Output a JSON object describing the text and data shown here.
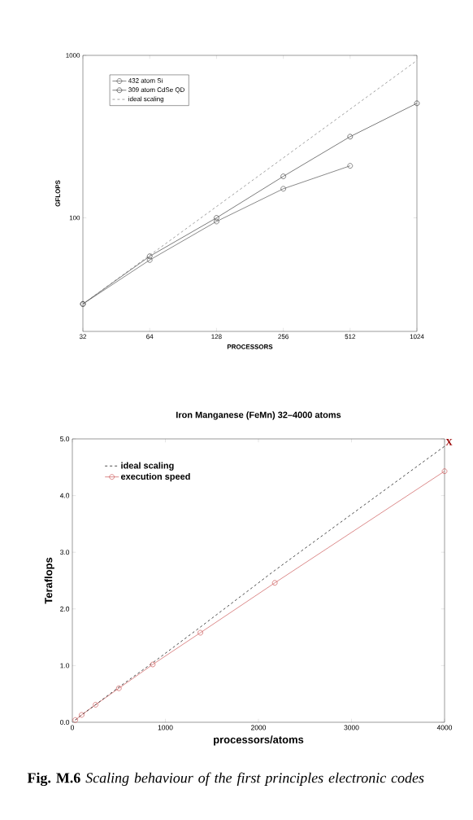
{
  "chart_data": [
    {
      "type": "line",
      "xlabel": "PROCESSORS",
      "ylabel": "GFLOPS",
      "log": "xy",
      "xlim": [
        32,
        1024
      ],
      "ylim": [
        20,
        1000
      ],
      "xticks": [
        32,
        64,
        128,
        256,
        512,
        1024
      ],
      "yticks": [
        100,
        1000
      ],
      "legend": "top left",
      "marker": "circle",
      "series": [
        {
          "name": "432 atom Si",
          "color": "#555555",
          "x": [
            32,
            64,
            128,
            256,
            512
          ],
          "values": [
            29.5,
            55,
            95,
            151,
            209
          ]
        },
        {
          "name": "309 atom CdSe QD",
          "color": "#444444",
          "x": [
            32,
            64,
            128,
            256,
            512,
            1024
          ],
          "values": [
            29.5,
            58,
            100,
            180,
            316,
            507
          ]
        },
        {
          "name": "ideal scaling",
          "color": "#777777",
          "x": [
            32,
            1024
          ],
          "values": [
            29.5,
            930
          ],
          "line_style": "dashed",
          "marker": "none"
        }
      ]
    },
    {
      "type": "line",
      "title": "Iron Manganese (FeMn)  32–4000 atoms",
      "xlabel": "processors/atoms",
      "ylabel": "Teraflops",
      "xlim": [
        0,
        4000
      ],
      "ylim": [
        0,
        5
      ],
      "xticks": [
        0,
        1000,
        2000,
        3000,
        4000
      ],
      "yticks": [
        {
          "value": 0,
          "label": "0.0"
        },
        {
          "value": 1,
          "label": "1.0"
        },
        {
          "value": 2,
          "label": "2.0"
        },
        {
          "value": 3,
          "label": "3.0"
        },
        {
          "value": 4,
          "label": "4.0"
        },
        {
          "value": 5,
          "label": "5.0"
        }
      ],
      "legend": "top left",
      "marker": "circle",
      "series": [
        {
          "name": "ideal scaling",
          "color": "#000000",
          "x": [
            32,
            100,
            250,
            500,
            864,
            1376,
            2176,
            4000
          ],
          "values": [
            0.04,
            0.13,
            0.31,
            0.62,
            1.05,
            1.68,
            2.68,
            4.87
          ],
          "line_style": "dashed",
          "marker": "none"
        },
        {
          "name": "execution speed",
          "color": "#cc5a5a",
          "x": [
            32,
            100,
            250,
            500,
            864,
            1376,
            2176,
            4000
          ],
          "values": [
            0.04,
            0.13,
            0.31,
            0.6,
            1.02,
            1.58,
            2.46,
            4.43
          ]
        }
      ],
      "annotations": [
        {
          "text": "X",
          "x": 4000,
          "y": 4.87
        },
        "**Fig. M.6** *Scaling behaviour of the first principles electronic codes*"
      ]
    }
  ]
}
